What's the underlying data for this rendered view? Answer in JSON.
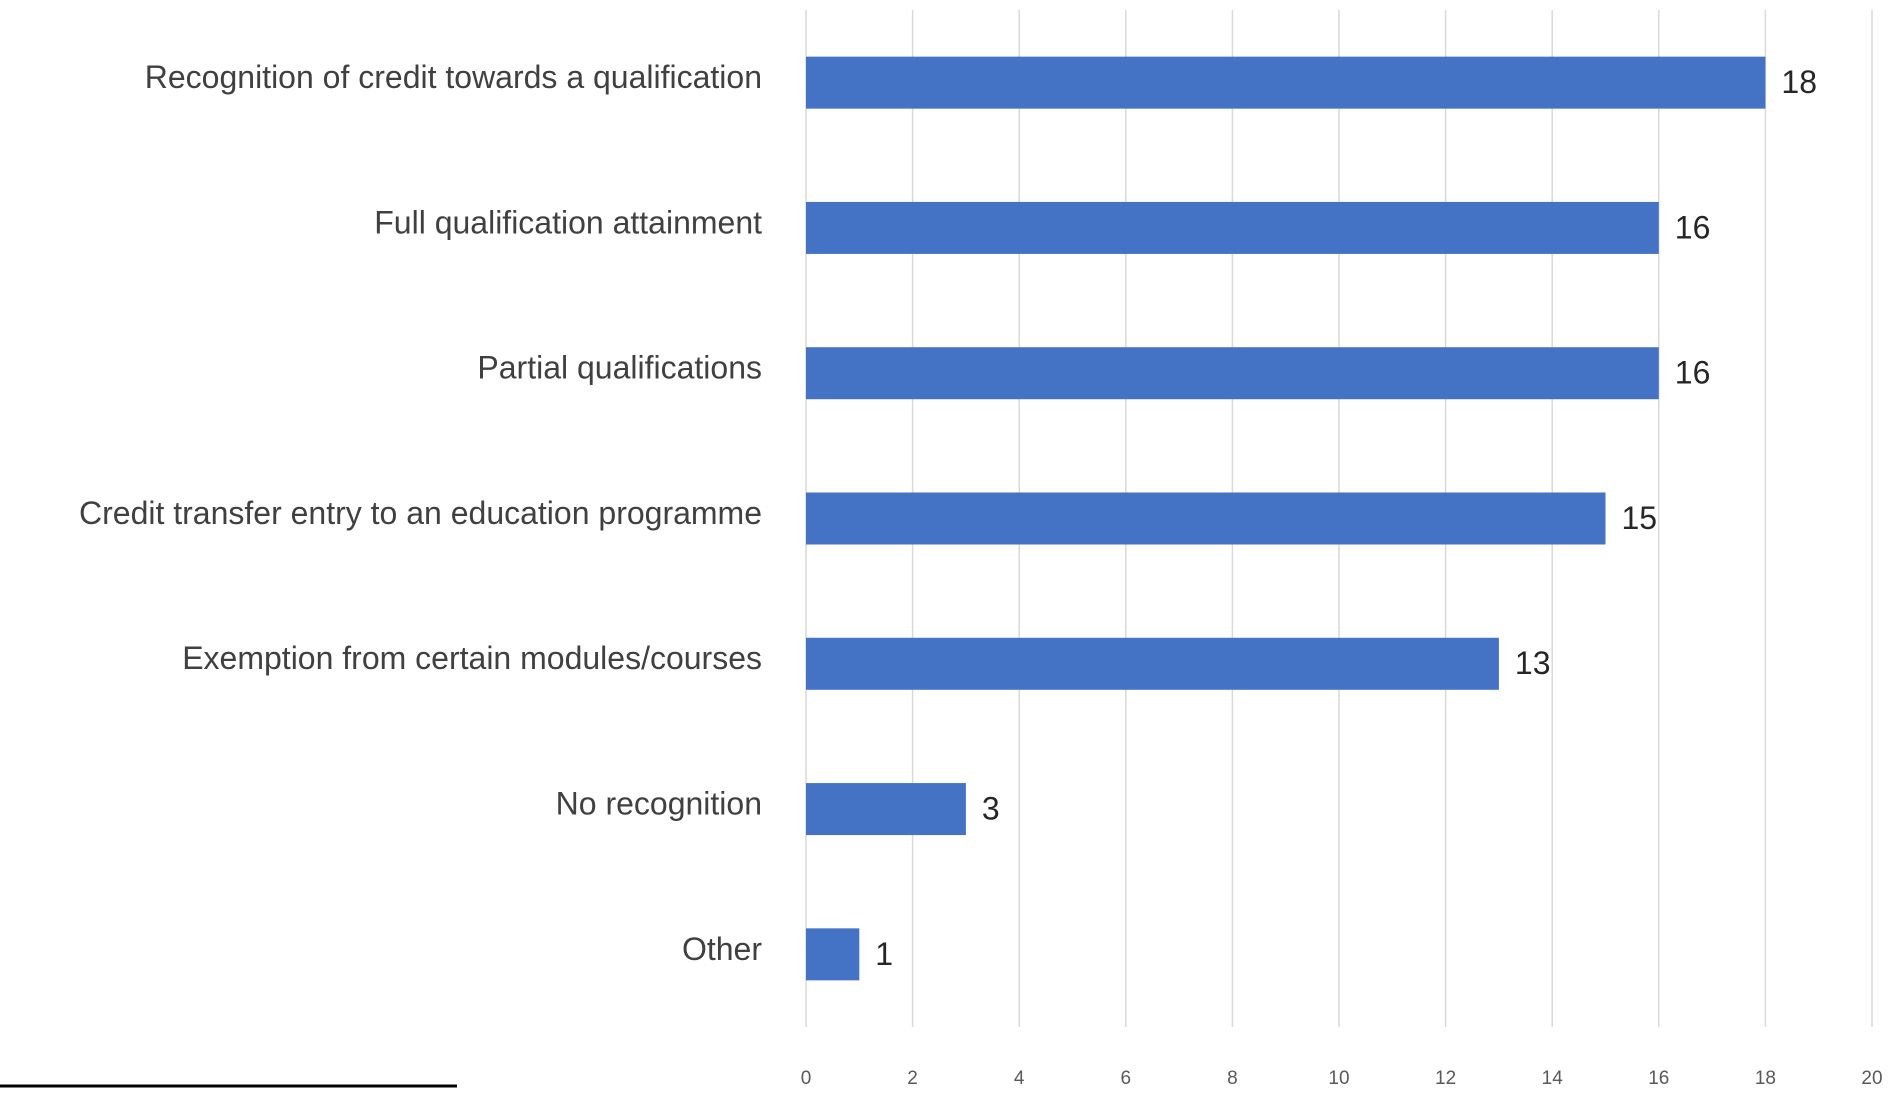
{
  "chart_data": {
    "type": "hbar",
    "categories": [
      "Recognition of credit towards a qualification",
      "Full qualification attainment",
      "Partial qualifications",
      "Credit transfer entry to an education programme",
      "Exemption from certain modules/courses",
      "No recognition",
      "Other"
    ],
    "values": [
      18,
      16,
      16,
      15,
      13,
      3,
      1
    ],
    "color": "#4472c4",
    "xlim": [
      0,
      20
    ],
    "xticks": [
      0,
      2,
      4,
      6,
      8,
      10,
      12,
      14,
      16,
      18,
      20
    ],
    "grid": true
  }
}
